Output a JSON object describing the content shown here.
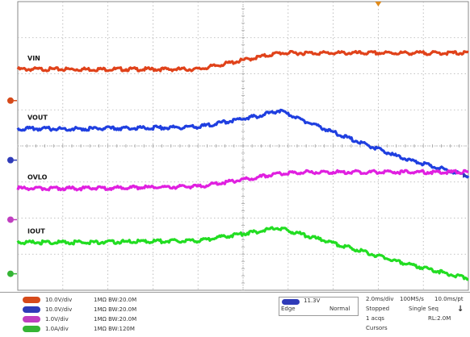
{
  "chart_data": {
    "type": "line",
    "grid": true,
    "x_divisions": 10,
    "y_divisions": 8,
    "series": [
      {
        "name": "VIN",
        "color": "#e0421a",
        "label_color": "#1a1a1a",
        "x": [
          0,
          1.5,
          4.0,
          5.8,
          6.3,
          10
        ],
        "y": [
          6.15,
          6.15,
          6.15,
          6.6,
          6.6,
          6.6
        ]
      },
      {
        "name": "VOUT",
        "color": "#1f3fe0",
        "label_color": "#1a1a1a",
        "x": [
          0,
          1.5,
          4.0,
          5.3,
          5.8,
          6.8,
          8.5,
          10
        ],
        "y": [
          4.5,
          4.5,
          4.55,
          4.85,
          5.0,
          4.5,
          3.7,
          3.2
        ]
      },
      {
        "name": "OVLO",
        "color": "#e020e0",
        "label_color": "#1a1a1a",
        "x": [
          0,
          1.5,
          4.0,
          5.8,
          6.3,
          10
        ],
        "y": [
          2.85,
          2.85,
          2.9,
          3.25,
          3.3,
          3.3
        ]
      },
      {
        "name": "IOUT",
        "color": "#22dd22",
        "label_color": "#1a1a1a",
        "x": [
          0,
          1.5,
          4.0,
          5.3,
          5.8,
          6.8,
          8.5,
          10
        ],
        "y": [
          1.35,
          1.35,
          1.4,
          1.65,
          1.75,
          1.4,
          0.8,
          0.35
        ]
      }
    ]
  },
  "channels": [
    {
      "color": "#d64a1a",
      "scale": "10.0V/div",
      "coupling": "1MΩ",
      "bw": "BW:20.0M"
    },
    {
      "color": "#2f3bb8",
      "scale": "10.0V/div",
      "coupling": "1MΩ",
      "bw": "BW:20.0M"
    },
    {
      "color": "#c03ec0",
      "scale": "1.0V/div",
      "coupling": "1MΩ",
      "bw": "BW:20.0M"
    },
    {
      "color": "#35b535",
      "scale": "1.0A/div",
      "coupling": "1MΩ",
      "bw": "BW:120M"
    }
  ],
  "trigger": {
    "level": "11.3V",
    "mode": "Normal",
    "type": "Edge"
  },
  "timebase": {
    "scale": "2.0ms/div",
    "sample_rate": "100MS/s",
    "pts": "10.0ms/pt",
    "state": "Stopped",
    "seq": "Single Seq",
    "acqs": "1 acqs",
    "rl": "RL:2.0M",
    "cursors": "Cursors"
  }
}
